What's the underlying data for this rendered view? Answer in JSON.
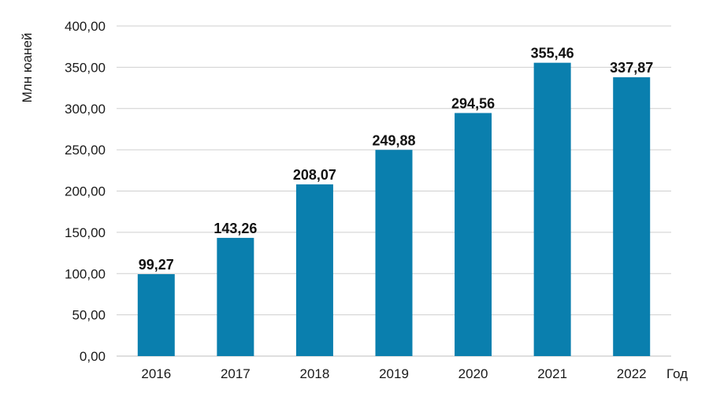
{
  "chart_data": {
    "type": "bar",
    "categories": [
      "2016",
      "2017",
      "2018",
      "2019",
      "2020",
      "2021",
      "2022"
    ],
    "values": [
      99.27,
      143.26,
      208.07,
      249.88,
      294.56,
      355.46,
      337.87
    ],
    "value_labels": [
      "99,27",
      "143,26",
      "208,07",
      "249,88",
      "294,56",
      "355,46",
      "337,87"
    ],
    "title": "",
    "xlabel": "Год",
    "ylabel": "Млн юаней",
    "ylim": [
      0,
      400
    ],
    "yticks": [
      0,
      50,
      100,
      150,
      200,
      250,
      300,
      350,
      400
    ],
    "ytick_labels": [
      "0,00",
      "50,00",
      "100,00",
      "150,00",
      "200,00",
      "250,00",
      "300,00",
      "350,00",
      "400,00"
    ],
    "grid": true,
    "legend": "none",
    "colors": {
      "bar": "#0a7fae",
      "grid": "#cfcfcf"
    }
  }
}
